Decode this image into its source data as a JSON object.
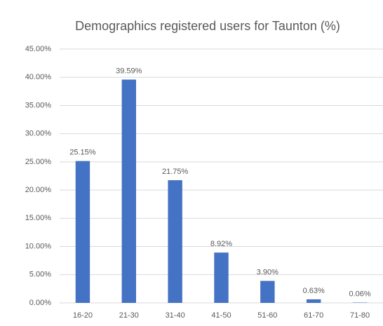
{
  "chart_data": {
    "type": "bar",
    "title": "Demographics registered users for Taunton (%)",
    "categories": [
      "16-20",
      "21-30",
      "31-40",
      "41-50",
      "51-60",
      "61-70",
      "71-80"
    ],
    "values": [
      25.15,
      39.59,
      21.75,
      8.92,
      3.9,
      0.63,
      0.06
    ],
    "value_labels": [
      "25.15%",
      "39.59%",
      "21.75%",
      "8.92%",
      "3.90%",
      "0.63%",
      "0.06%"
    ],
    "color": "#4472c4",
    "ylim": [
      0,
      45
    ],
    "yticks": [
      {
        "value": 0,
        "label": "0.00%"
      },
      {
        "value": 5,
        "label": "5.00%"
      },
      {
        "value": 10,
        "label": "10.00%"
      },
      {
        "value": 15,
        "label": "15.00%"
      },
      {
        "value": 20,
        "label": "20.00%"
      },
      {
        "value": 25,
        "label": "25.00%"
      },
      {
        "value": 30,
        "label": "30.00%"
      },
      {
        "value": 35,
        "label": "35.00%"
      },
      {
        "value": 40,
        "label": "40.00%"
      },
      {
        "value": 45,
        "label": "45.00%"
      }
    ],
    "grid": true
  }
}
